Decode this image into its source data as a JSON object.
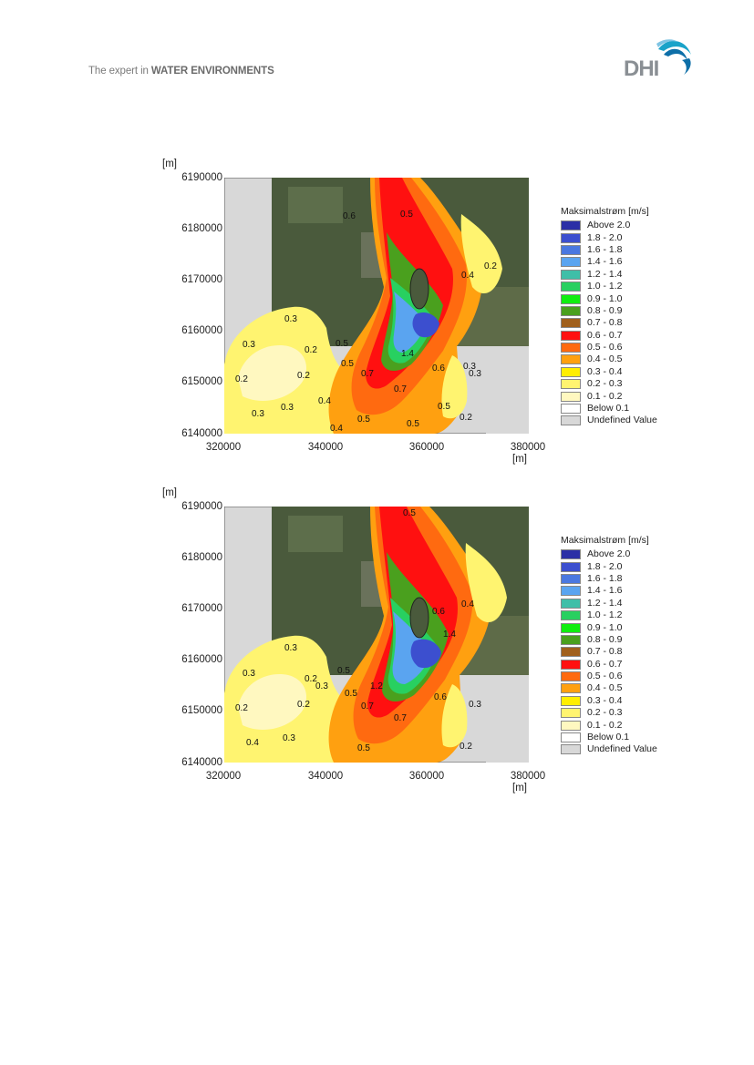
{
  "header": {
    "tagline_prefix": "The expert in ",
    "tagline_bold": "WATER ENVIRONMENTS",
    "logo_text": "DHI",
    "logo_colors": [
      "#1aa3c9",
      "#0d6fa8",
      "#7fc4e3"
    ]
  },
  "figures": [
    {
      "y_unit": "[m]",
      "y_ticks": [
        "6190000",
        "6180000",
        "6170000",
        "6160000",
        "6150000",
        "6140000"
      ],
      "x_ticks": [
        "320000",
        "340000",
        "360000",
        "380000"
      ],
      "x_unit": "[m]",
      "legend_title": "Maksimalstrøm [m/s]",
      "contour_labels": [
        "0.3",
        "0.2",
        "0.3",
        "0.2",
        "0.2",
        "0.3",
        "0.3",
        "0.4",
        "0.5",
        "0.5",
        "0.7",
        "0.7",
        "1.4",
        "0.6",
        "0.5",
        "0.3",
        "0.2",
        "0.5",
        "0.4",
        "0.5",
        "0.6",
        "0.5",
        "0.4",
        "0.3",
        "0.2"
      ]
    },
    {
      "y_unit": "[m]",
      "y_ticks": [
        "6190000",
        "6180000",
        "6170000",
        "6160000",
        "6150000",
        "6140000"
      ],
      "x_ticks": [
        "320000",
        "340000",
        "360000",
        "380000"
      ],
      "x_unit": "[m]",
      "legend_title": "Maksimalstrøm [m/s]",
      "contour_labels": [
        "0.3",
        "0.2",
        "0.3",
        "0.2",
        "0.2",
        "0.3",
        "0.4",
        "0.5",
        "0.3",
        "0.5",
        "0.7",
        "0.7",
        "1.2",
        "1.4",
        "0.6",
        "0.5",
        "0.6",
        "0.4",
        "0.3",
        "0.2",
        "0.5"
      ]
    }
  ],
  "legend": [
    {
      "label": "Above 2.0",
      "color": "#2b2fa6"
    },
    {
      "label": "1.8 - 2.0",
      "color": "#3c4fcf"
    },
    {
      "label": "1.6 - 1.8",
      "color": "#4a78e0"
    },
    {
      "label": "1.4 - 1.6",
      "color": "#5aa4f0"
    },
    {
      "label": "1.2 - 1.4",
      "color": "#3fbfa8"
    },
    {
      "label": "1.0 - 1.2",
      "color": "#28d060"
    },
    {
      "label": "0.9 - 1.0",
      "color": "#10ee10"
    },
    {
      "label": "0.8 - 0.9",
      "color": "#4aa01e"
    },
    {
      "label": "0.7 - 0.8",
      "color": "#a0601c"
    },
    {
      "label": "0.6 - 0.7",
      "color": "#ff1010"
    },
    {
      "label": "0.5 - 0.6",
      "color": "#ff6a10"
    },
    {
      "label": "0.4 - 0.5",
      "color": "#ffa010"
    },
    {
      "label": "0.3 - 0.4",
      "color": "#ffee00"
    },
    {
      "label": "0.2 - 0.3",
      "color": "#fff470"
    },
    {
      "label": "0.1 - 0.2",
      "color": "#fff8c0"
    },
    {
      "label": "Below  0.1",
      "color": "#ffffff"
    },
    {
      "label": "Undefined Value",
      "color": "#d8d8d8"
    }
  ]
}
